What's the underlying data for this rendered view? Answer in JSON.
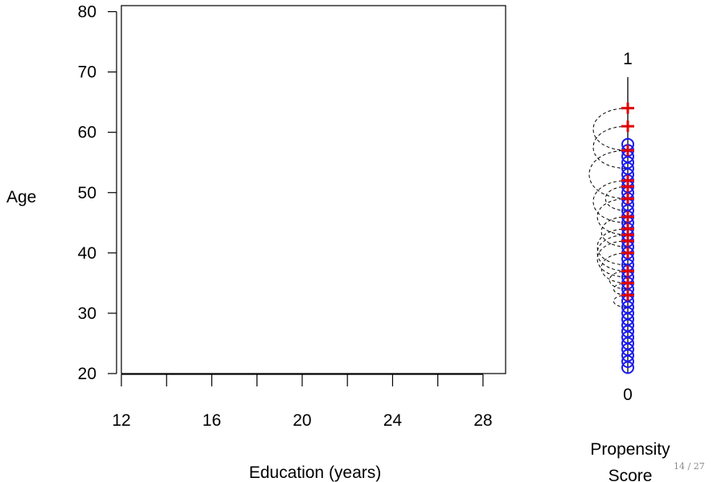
{
  "chart_data": [
    {
      "type": "scatter",
      "title": "",
      "xlabel": "Education (years)",
      "ylabel": "Age",
      "xlim": [
        12,
        29
      ],
      "ylim": [
        20,
        81
      ],
      "x_ticks": [
        12,
        14,
        16,
        18,
        20,
        22,
        24,
        26,
        28
      ],
      "x_tick_labels": [
        "12",
        "16",
        "20",
        "24",
        "28"
      ],
      "y_ticks": [
        20,
        30,
        40,
        50,
        60,
        70,
        80
      ],
      "y_tick_labels": [
        "20",
        "30",
        "40",
        "50",
        "60",
        "70",
        "80"
      ],
      "grid": false,
      "points": []
    },
    {
      "type": "scatter",
      "title": "",
      "axis_label": "Propensity Score",
      "axis_label_lines": [
        "Propensity",
        "Score"
      ],
      "axis_min_label": "0",
      "axis_max_label": "1",
      "scale_range": [
        20,
        81
      ],
      "treated": [
        33,
        35,
        37,
        40,
        42,
        43,
        44,
        46,
        49,
        51,
        52,
        57,
        61,
        64
      ],
      "control": [
        21,
        22,
        23,
        24,
        25,
        26,
        27,
        28,
        29,
        30,
        31,
        32,
        33,
        34,
        35,
        36,
        37,
        38,
        39,
        40,
        41,
        42,
        43,
        44,
        45,
        46,
        47,
        48,
        49,
        50,
        51,
        52,
        53,
        54,
        55,
        56,
        57,
        58
      ],
      "matches": [
        [
          64,
          57
        ],
        [
          61,
          54
        ],
        [
          57,
          49
        ],
        [
          52,
          45
        ],
        [
          51,
          47
        ],
        [
          49,
          43
        ],
        [
          46,
          41
        ],
        [
          44,
          38
        ],
        [
          43,
          37
        ],
        [
          42,
          36
        ],
        [
          40,
          35
        ],
        [
          37,
          34
        ],
        [
          35,
          33
        ],
        [
          33,
          31
        ]
      ],
      "colors": {
        "treated": "#e00000",
        "control": "#1a1aee",
        "match": "#000000"
      }
    }
  ],
  "page_number": "14 / 27"
}
